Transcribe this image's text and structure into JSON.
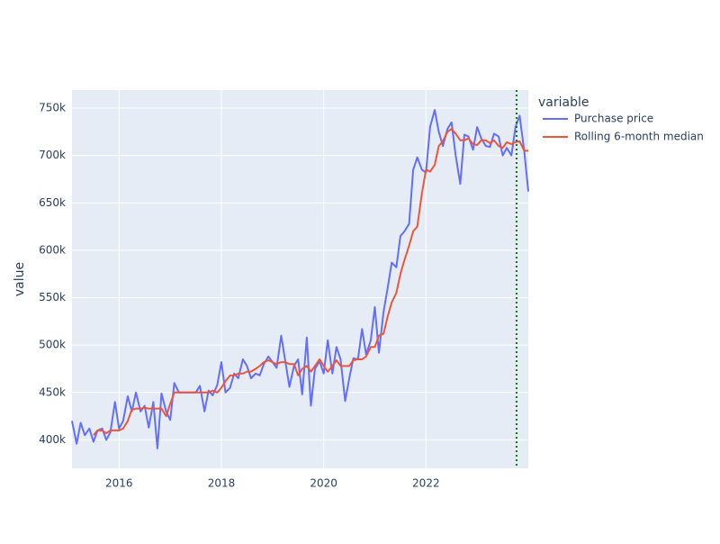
{
  "chart_data": {
    "type": "line",
    "y_label": "value",
    "legend_title": "variable",
    "x": [
      2015.08,
      2015.17,
      2015.25,
      2015.33,
      2015.42,
      2015.5,
      2015.58,
      2015.67,
      2015.75,
      2015.83,
      2015.92,
      2016,
      2016.08,
      2016.17,
      2016.25,
      2016.33,
      2016.42,
      2016.5,
      2016.58,
      2016.67,
      2016.75,
      2016.83,
      2016.92,
      2017,
      2017.08,
      2017.17,
      2017.25,
      2017.33,
      2017.42,
      2017.5,
      2017.58,
      2017.67,
      2017.75,
      2017.83,
      2017.92,
      2018,
      2018.08,
      2018.17,
      2018.25,
      2018.33,
      2018.42,
      2018.5,
      2018.58,
      2018.67,
      2018.75,
      2018.83,
      2018.92,
      2019,
      2019.08,
      2019.17,
      2019.25,
      2019.33,
      2019.42,
      2019.5,
      2019.58,
      2019.67,
      2019.75,
      2019.83,
      2019.92,
      2020,
      2020.08,
      2020.17,
      2020.25,
      2020.33,
      2020.42,
      2020.5,
      2020.58,
      2020.67,
      2020.75,
      2020.83,
      2020.92,
      2021,
      2021.08,
      2021.17,
      2021.25,
      2021.33,
      2021.42,
      2021.5,
      2021.58,
      2021.67,
      2021.75,
      2021.83,
      2021.92,
      2022,
      2022.08,
      2022.17,
      2022.25,
      2022.33,
      2022.42,
      2022.5,
      2022.58,
      2022.67,
      2022.75,
      2022.83,
      2022.92,
      2023,
      2023.08,
      2023.17,
      2023.25,
      2023.33,
      2023.42,
      2023.5,
      2023.58,
      2023.67,
      2023.75,
      2023.83,
      2023.92,
      2024
    ],
    "series": [
      {
        "name": "Purchase price",
        "color": "#636efa",
        "values": [
          420000,
          396000,
          418000,
          405000,
          412000,
          398000,
          410000,
          412000,
          400000,
          408000,
          440000,
          412000,
          420000,
          446000,
          430000,
          450000,
          430000,
          436000,
          413000,
          440000,
          391000,
          449000,
          430000,
          421000,
          460000,
          450000,
          450000,
          450000,
          450000,
          450000,
          457000,
          430000,
          452000,
          447000,
          458000,
          482000,
          450000,
          455000,
          470000,
          465000,
          485000,
          478000,
          465000,
          470000,
          468000,
          480000,
          488000,
          482000,
          476000,
          510000,
          483000,
          456000,
          478000,
          485000,
          448000,
          508000,
          436000,
          475000,
          483000,
          470000,
          505000,
          470000,
          498000,
          485000,
          441000,
          465000,
          486000,
          485000,
          517000,
          490000,
          505000,
          540000,
          492000,
          535000,
          560000,
          587000,
          582000,
          615000,
          620000,
          628000,
          685000,
          698000,
          685000,
          682000,
          730000,
          748000,
          725000,
          710000,
          728000,
          735000,
          700000,
          670000,
          722000,
          720000,
          706000,
          730000,
          718000,
          710000,
          709000,
          723000,
          720000,
          700000,
          708000,
          700000,
          730000,
          742000,
          705000,
          662000
        ]
      },
      {
        "name": "Rolling 6-month median",
        "color": "#ef553b",
        "values": [
          null,
          null,
          null,
          null,
          null,
          405000,
          410000,
          410000,
          407000,
          410000,
          410000,
          410000,
          412000,
          420000,
          432000,
          433000,
          433000,
          434000,
          433000,
          433000,
          433000,
          433000,
          425000,
          438000,
          450000,
          450000,
          450000,
          450000,
          450000,
          450000,
          450000,
          450000,
          450000,
          452000,
          450000,
          455000,
          462000,
          468000,
          468000,
          470000,
          470000,
          472000,
          472000,
          475000,
          478000,
          482000,
          484000,
          482000,
          480000,
          482000,
          482000,
          480000,
          480000,
          468000,
          475000,
          478000,
          472000,
          478000,
          485000,
          478000,
          472000,
          478000,
          484000,
          478000,
          478000,
          478000,
          484000,
          485000,
          485000,
          488000,
          498000,
          498000,
          510000,
          512000,
          530000,
          545000,
          555000,
          575000,
          590000,
          605000,
          620000,
          625000,
          660000,
          685000,
          683000,
          690000,
          710000,
          715000,
          725000,
          728000,
          723000,
          716000,
          716000,
          718000,
          712000,
          711000,
          716000,
          716000,
          713000,
          716000,
          710000,
          708000,
          714000,
          712000,
          714000,
          715000,
          705000,
          705000
        ]
      }
    ],
    "xlim": [
      2015.08,
      2024
    ],
    "xticks": [
      2016,
      2018,
      2020,
      2022
    ],
    "ylim": [
      370000,
      769000
    ],
    "yticks": [
      {
        "value": 400000,
        "label": "400k"
      },
      {
        "value": 450000,
        "label": "450k"
      },
      {
        "value": 500000,
        "label": "500k"
      },
      {
        "value": 550000,
        "label": "550k"
      },
      {
        "value": 600000,
        "label": "600k"
      },
      {
        "value": 650000,
        "label": "650k"
      },
      {
        "value": 700000,
        "label": "700k"
      },
      {
        "value": 750000,
        "label": "750k"
      }
    ],
    "grid": true,
    "vline": {
      "x": 2023.77,
      "color": "green"
    }
  }
}
